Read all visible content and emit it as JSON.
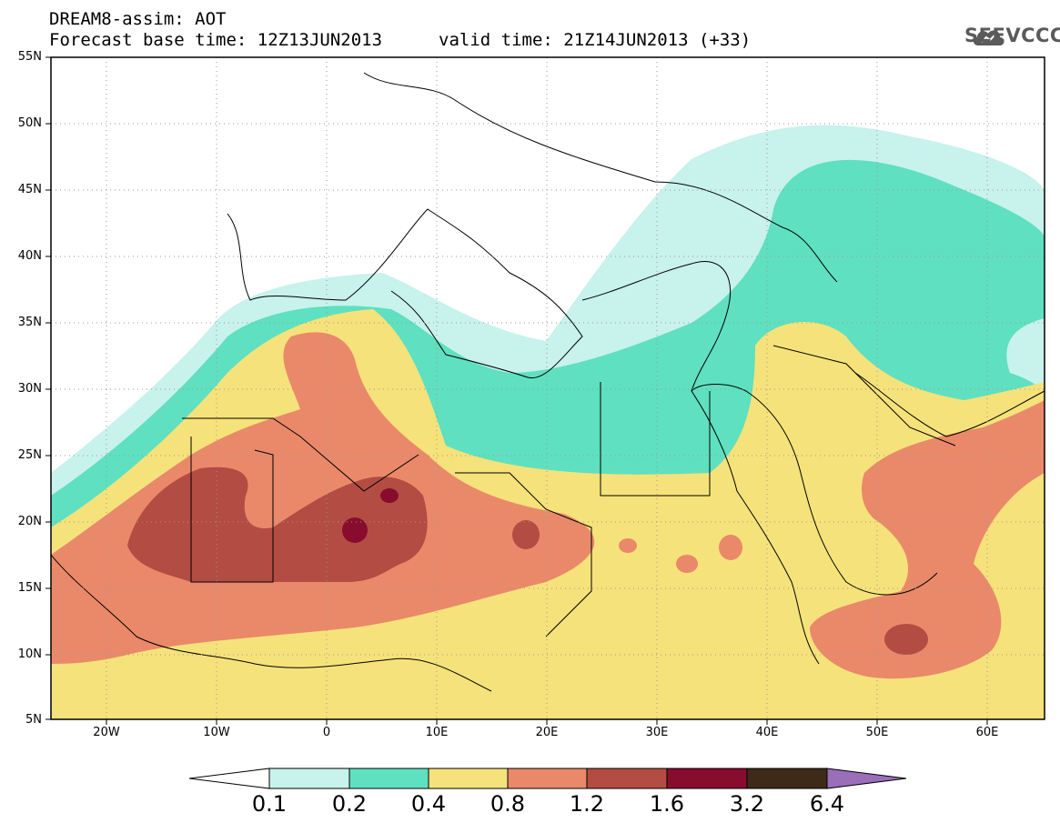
{
  "header": {
    "title_line1": "DREAM8-assim: AOT",
    "title_line2": "Forecast base time: 12Z13JUN2013",
    "valid_time": "valid time: 21Z14JUN2013 (+33)",
    "logo_text": "SEEVCCC"
  },
  "map": {
    "variable": "AOT",
    "region": {
      "lon_range": [
        -25,
        65
      ],
      "lat_range": [
        5,
        55
      ]
    },
    "lat_labels": [
      "55N",
      "50N",
      "45N",
      "40N",
      "35N",
      "30N",
      "25N",
      "20N",
      "15N",
      "10N",
      "5N"
    ],
    "lon_labels": [
      "20W",
      "10W",
      "0",
      "10E",
      "20E",
      "30E",
      "40E",
      "50E",
      "60E"
    ],
    "grid": "dotted"
  },
  "legend": {
    "labels": [
      "0.1",
      "0.2",
      "0.4",
      "0.8",
      "1.2",
      "1.6",
      "3.2",
      "6.4"
    ],
    "colors": [
      "#c8f2ec",
      "#5fe0c0",
      "#f6e27a",
      "#e9896a",
      "#b34c42",
      "#880c2e",
      "#3e2a18",
      "#9a6eb8"
    ],
    "under_color": "#ffffff"
  }
}
